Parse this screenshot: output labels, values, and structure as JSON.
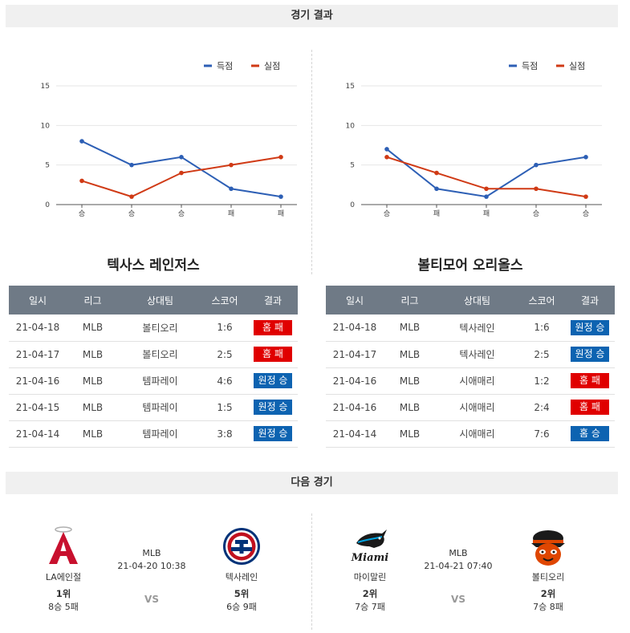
{
  "sections": {
    "results_title": "경기 결과",
    "next_title": "다음 경기"
  },
  "legend": {
    "scored": "득점",
    "conceded": "실점",
    "scored_color": "#2d5fb5",
    "conceded_color": "#d03a15"
  },
  "charts": [
    {
      "team": "텍사스 레인저스",
      "categories": [
        "승",
        "승",
        "승",
        "패",
        "패"
      ],
      "scored": [
        8,
        5,
        6,
        2,
        1
      ],
      "conceded": [
        3,
        1,
        4,
        5,
        6
      ],
      "y_ticks": [
        "0",
        "5",
        "10",
        "15"
      ],
      "ylim": [
        0,
        15
      ]
    },
    {
      "team": "볼티모어 오리올스",
      "categories": [
        "승",
        "패",
        "패",
        "승",
        "승"
      ],
      "scored": [
        7,
        2,
        1,
        5,
        6
      ],
      "conceded": [
        6,
        4,
        2,
        2,
        1
      ],
      "y_ticks": [
        "0",
        "5",
        "10",
        "15"
      ],
      "ylim": [
        0,
        15
      ]
    }
  ],
  "table_headers": [
    "일시",
    "리그",
    "상대팀",
    "스코어",
    "결과"
  ],
  "tables": [
    {
      "rows": [
        {
          "date": "21-04-18",
          "league": "MLB",
          "opponent": "볼티오리",
          "score": "1:6",
          "result": "홈 패",
          "type": "loss"
        },
        {
          "date": "21-04-17",
          "league": "MLB",
          "opponent": "볼티오리",
          "score": "2:5",
          "result": "홈 패",
          "type": "loss"
        },
        {
          "date": "21-04-16",
          "league": "MLB",
          "opponent": "템파레이",
          "score": "4:6",
          "result": "원정 승",
          "type": "win"
        },
        {
          "date": "21-04-15",
          "league": "MLB",
          "opponent": "템파레이",
          "score": "1:5",
          "result": "원정 승",
          "type": "win"
        },
        {
          "date": "21-04-14",
          "league": "MLB",
          "opponent": "템파레이",
          "score": "3:8",
          "result": "원정 승",
          "type": "win"
        }
      ]
    },
    {
      "rows": [
        {
          "date": "21-04-18",
          "league": "MLB",
          "opponent": "텍사레인",
          "score": "1:6",
          "result": "원정 승",
          "type": "win"
        },
        {
          "date": "21-04-17",
          "league": "MLB",
          "opponent": "텍사레인",
          "score": "2:5",
          "result": "원정 승",
          "type": "win"
        },
        {
          "date": "21-04-16",
          "league": "MLB",
          "opponent": "시애매리",
          "score": "1:2",
          "result": "홈 패",
          "type": "loss"
        },
        {
          "date": "21-04-16",
          "league": "MLB",
          "opponent": "시애매리",
          "score": "2:4",
          "result": "홈 패",
          "type": "loss"
        },
        {
          "date": "21-04-14",
          "league": "MLB",
          "opponent": "시애매리",
          "score": "7:6",
          "result": "홈 승",
          "type": "win"
        }
      ]
    }
  ],
  "next_games": [
    {
      "league": "MLB",
      "datetime": "21-04-20 10:38",
      "vs": "VS",
      "home": {
        "name": "LA에인절",
        "rank": "1위",
        "record": "8승 5패",
        "logo": "angels-logo"
      },
      "away": {
        "name": "텍사레인",
        "rank": "5위",
        "record": "6승 9패",
        "logo": "rangers-logo"
      }
    },
    {
      "league": "MLB",
      "datetime": "21-04-21 07:40",
      "vs": "VS",
      "home": {
        "name": "마이말린",
        "rank": "2위",
        "record": "7승 7패",
        "logo": "marlins-logo"
      },
      "away": {
        "name": "볼티오리",
        "rank": "2위",
        "record": "7승 8패",
        "logo": "orioles-logo"
      }
    }
  ]
}
